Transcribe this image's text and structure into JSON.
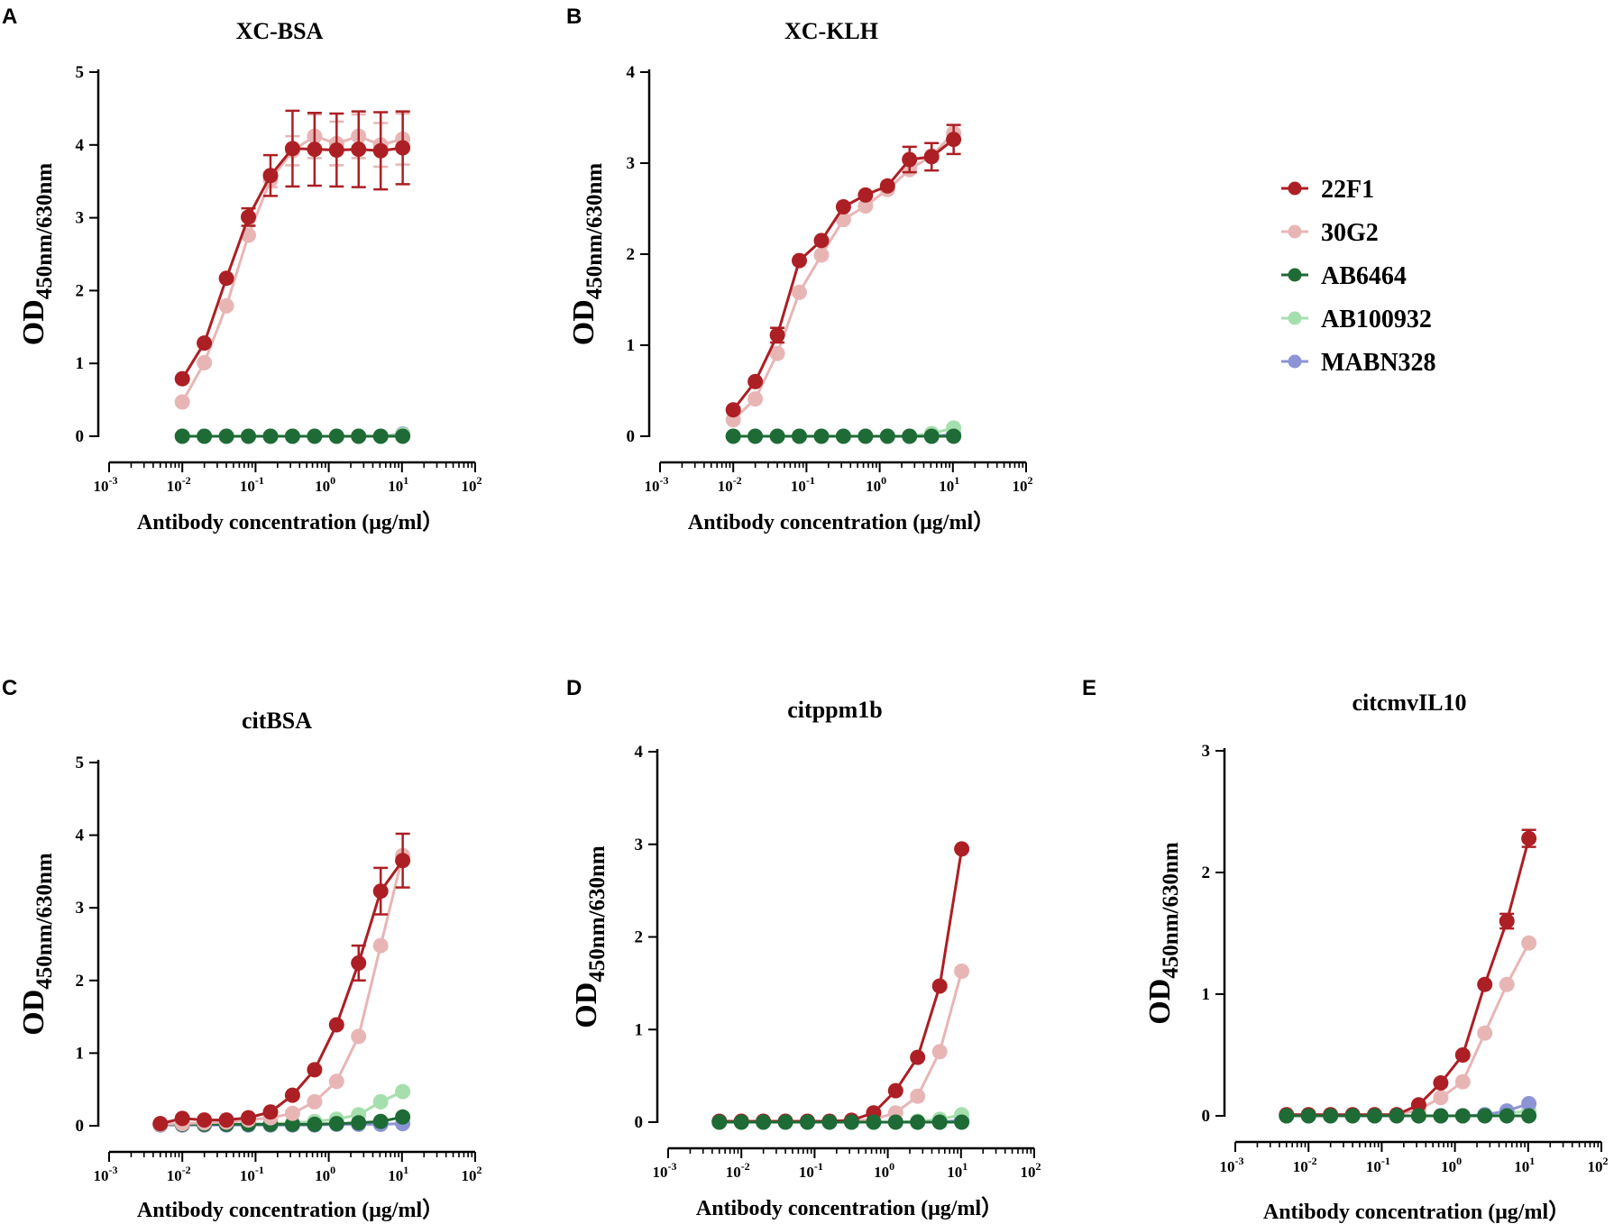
{
  "figure": {
    "legend": [
      {
        "name": "22F1",
        "color": "#ac1f24"
      },
      {
        "name": "30G2",
        "color": "#e8b5b5"
      },
      {
        "name": "AB6464",
        "color": "#1e6b36"
      },
      {
        "name": "AB100932",
        "color": "#a6dfae"
      },
      {
        "name": "MABN328",
        "color": "#8c94d6"
      }
    ],
    "x_tick_labels": [
      {
        "base": "10",
        "exp": "-3"
      },
      {
        "base": "10",
        "exp": "-2"
      },
      {
        "base": "10",
        "exp": "-1"
      },
      {
        "base": "10",
        "exp": "0"
      },
      {
        "base": "10",
        "exp": "1"
      },
      {
        "base": "10",
        "exp": "2"
      }
    ]
  },
  "chart_data": [
    {
      "panel": "A",
      "type": "scatter",
      "title": "XC-BSA",
      "xlabel": "Antibody concentration (μg/ml）",
      "ylabel": {
        "main": "OD",
        "sub": "450nm/630nm"
      },
      "xscale": "log",
      "xlim": [
        0.001,
        100
      ],
      "ylim": [
        0,
        5
      ],
      "yticks": [
        0,
        1,
        2,
        3,
        4,
        5
      ],
      "x": [
        0.01,
        0.02,
        0.04,
        0.08,
        0.16,
        0.32,
        0.64,
        1.28,
        2.56,
        5.12,
        10.24
      ],
      "series": [
        {
          "name": "30G2",
          "values": [
            0.47,
            1.01,
            1.79,
            2.76,
            3.52,
            3.92,
            4.12,
            4.02,
            4.12,
            4.0,
            4.08
          ],
          "errors": [
            0,
            0,
            0,
            0,
            0.1,
            0.2,
            0.3,
            0.3,
            0.3,
            0.3,
            0.35
          ]
        },
        {
          "name": "22F1",
          "values": [
            0.79,
            1.28,
            2.17,
            3.01,
            3.58,
            3.95,
            3.94,
            3.93,
            3.94,
            3.92,
            3.96
          ],
          "errors": [
            0,
            0,
            0,
            0.12,
            0.28,
            0.52,
            0.5,
            0.5,
            0.52,
            0.53,
            0.5
          ]
        },
        {
          "name": "MABN328",
          "values": [
            0,
            0,
            0,
            0,
            0,
            0,
            0,
            0,
            0,
            0,
            0.03
          ],
          "errors": []
        },
        {
          "name": "AB100932",
          "values": [
            0,
            0,
            0,
            0,
            0,
            0,
            0,
            0,
            0,
            0,
            0.02
          ],
          "errors": []
        },
        {
          "name": "AB6464",
          "values": [
            0,
            0,
            0,
            0,
            0,
            0,
            0,
            0,
            0,
            0,
            0
          ],
          "errors": []
        }
      ]
    },
    {
      "panel": "B",
      "type": "scatter",
      "title": "XC-KLH",
      "xlabel": "Antibody concentration (μg/ml）",
      "ylabel": {
        "main": "OD",
        "sub": "450nm/630nm"
      },
      "xscale": "log",
      "xlim": [
        0.001,
        100
      ],
      "ylim": [
        0,
        4
      ],
      "yticks": [
        0,
        1,
        2,
        3,
        4
      ],
      "x": [
        0.01,
        0.02,
        0.04,
        0.08,
        0.16,
        0.32,
        0.64,
        1.28,
        2.56,
        5.12,
        10.24
      ],
      "series": [
        {
          "name": "30G2",
          "values": [
            0.18,
            0.41,
            0.91,
            1.58,
            1.99,
            2.38,
            2.53,
            2.71,
            2.93,
            3.08,
            3.33
          ],
          "errors": []
        },
        {
          "name": "22F1",
          "values": [
            0.29,
            0.6,
            1.11,
            1.93,
            2.15,
            2.52,
            2.65,
            2.75,
            3.04,
            3.07,
            3.26
          ],
          "errors": [
            0,
            0,
            0.08,
            0,
            0,
            0,
            0,
            0,
            0.14,
            0.15,
            0.16
          ]
        },
        {
          "name": "MABN328",
          "values": [
            0,
            0,
            0,
            0,
            0,
            0,
            0,
            0,
            0,
            0,
            0.02
          ],
          "errors": []
        },
        {
          "name": "AB100932",
          "values": [
            0,
            0,
            0,
            0,
            0,
            0,
            0,
            0,
            0,
            0.03,
            0.09
          ],
          "errors": []
        },
        {
          "name": "AB6464",
          "values": [
            0,
            0,
            0,
            0,
            0,
            0,
            0,
            0,
            0,
            0,
            0
          ],
          "errors": []
        }
      ]
    },
    {
      "panel": "C",
      "type": "scatter",
      "title": "citBSA",
      "xlabel": "Antibody concentration (μg/ml）",
      "ylabel": {
        "main": "OD",
        "sub": "450nm/630nm"
      },
      "xscale": "log",
      "xlim": [
        0.001,
        100
      ],
      "ylim": [
        0,
        5
      ],
      "yticks": [
        0,
        1,
        2,
        3,
        4,
        5
      ],
      "x": [
        0.005,
        0.01,
        0.02,
        0.04,
        0.08,
        0.16,
        0.32,
        0.64,
        1.28,
        2.56,
        5.12,
        10.24
      ],
      "series": [
        {
          "name": "AB100932",
          "values": [
            0.02,
            0.02,
            0.02,
            0.02,
            0.02,
            0.03,
            0.04,
            0.06,
            0.09,
            0.15,
            0.33,
            0.47
          ],
          "errors": []
        },
        {
          "name": "MABN328",
          "values": [
            0.01,
            0.01,
            0.01,
            0.01,
            0.01,
            0.01,
            0.01,
            0.01,
            0.02,
            0.02,
            0.02,
            0.03
          ],
          "errors": []
        },
        {
          "name": "AB6464",
          "values": [
            0.02,
            0.02,
            0.02,
            0.02,
            0.02,
            0.02,
            0.02,
            0.02,
            0.03,
            0.04,
            0.06,
            0.12
          ],
          "errors": []
        },
        {
          "name": "30G2",
          "values": [
            0.02,
            0.03,
            0.04,
            0.05,
            0.08,
            0.11,
            0.17,
            0.33,
            0.61,
            1.23,
            2.48,
            3.72
          ],
          "errors": []
        },
        {
          "name": "22F1",
          "values": [
            0.03,
            0.1,
            0.08,
            0.08,
            0.11,
            0.19,
            0.42,
            0.77,
            1.39,
            2.24,
            3.23,
            3.65
          ],
          "errors": [
            0,
            0,
            0,
            0,
            0,
            0,
            0,
            0,
            0,
            0.24,
            0.32,
            0.37
          ]
        }
      ]
    },
    {
      "panel": "D",
      "type": "scatter",
      "title": "citppm1b",
      "xlabel": "Antibody concentration (μg/ml）",
      "ylabel": {
        "main": "OD",
        "sub": "450nm/630nm"
      },
      "xscale": "log",
      "xlim": [
        0.001,
        100
      ],
      "ylim": [
        0,
        4
      ],
      "yticks": [
        0,
        1,
        2,
        3,
        4
      ],
      "x": [
        0.005,
        0.01,
        0.02,
        0.04,
        0.08,
        0.16,
        0.32,
        0.64,
        1.28,
        2.56,
        5.12,
        10.24
      ],
      "series": [
        {
          "name": "MABN328",
          "values": [
            0,
            0,
            0,
            0,
            0,
            0,
            0,
            0,
            0,
            0,
            0,
            0.02
          ],
          "errors": []
        },
        {
          "name": "AB100932",
          "values": [
            0,
            0,
            0,
            0,
            0,
            0,
            0,
            0,
            0,
            0.01,
            0.03,
            0.08
          ],
          "errors": []
        },
        {
          "name": "30G2",
          "values": [
            0.01,
            0.01,
            0.01,
            0.01,
            0.01,
            0.01,
            0.01,
            0.03,
            0.1,
            0.28,
            0.76,
            1.63
          ],
          "errors": []
        },
        {
          "name": "22F1",
          "values": [
            0.01,
            0.01,
            0.01,
            0.01,
            0.01,
            0.01,
            0.02,
            0.1,
            0.34,
            0.7,
            1.47,
            2.95
          ],
          "errors": []
        },
        {
          "name": "AB6464",
          "values": [
            0,
            0,
            0,
            0,
            0,
            0,
            0,
            0,
            0,
            0,
            0,
            0
          ],
          "errors": []
        }
      ]
    },
    {
      "panel": "E",
      "type": "scatter",
      "title": "citcmvIL10",
      "xlabel": "Antibody concentration (μg/ml）",
      "ylabel": {
        "main": "OD",
        "sub": "450nm/630nm"
      },
      "xscale": "log",
      "xlim": [
        0.001,
        100
      ],
      "ylim": [
        0,
        3
      ],
      "yticks": [
        0,
        1,
        2,
        3
      ],
      "x": [
        0.005,
        0.01,
        0.02,
        0.04,
        0.08,
        0.16,
        0.32,
        0.64,
        1.28,
        2.56,
        5.12,
        10.24
      ],
      "series": [
        {
          "name": "AB100932",
          "values": [
            0,
            0,
            0,
            0,
            0,
            0,
            0,
            0,
            0,
            0.01,
            0.02,
            0.04
          ],
          "errors": []
        },
        {
          "name": "MABN328",
          "values": [
            0,
            0,
            0,
            0,
            0,
            0,
            0,
            0,
            0,
            0.01,
            0.04,
            0.1
          ],
          "errors": []
        },
        {
          "name": "30G2",
          "values": [
            0.01,
            0.01,
            0.01,
            0.01,
            0.01,
            0.01,
            0.05,
            0.15,
            0.28,
            0.68,
            1.08,
            1.42
          ],
          "errors": []
        },
        {
          "name": "22F1",
          "values": [
            0.01,
            0.01,
            0.01,
            0.01,
            0.01,
            0.01,
            0.09,
            0.27,
            0.5,
            1.08,
            1.6,
            2.28
          ],
          "errors": [
            0,
            0,
            0,
            0,
            0,
            0,
            0,
            0,
            0,
            0,
            0.06,
            0.07
          ]
        },
        {
          "name": "AB6464",
          "values": [
            0,
            0,
            0,
            0,
            0,
            0,
            0,
            0,
            0,
            0,
            0,
            0
          ],
          "errors": []
        }
      ]
    }
  ]
}
